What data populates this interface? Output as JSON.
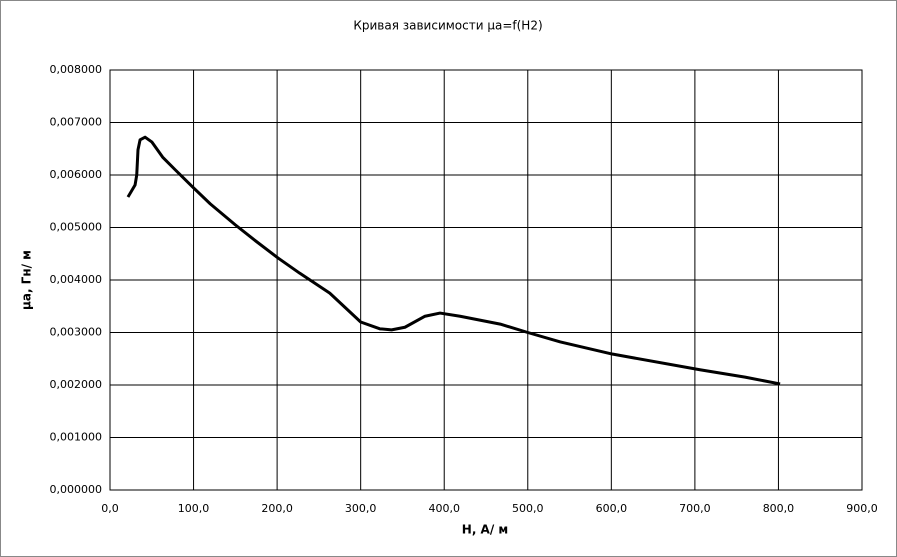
{
  "chart_data": {
    "type": "line",
    "title": "Кривая зависимости μа=f(H2)",
    "x_label": "Н, А/ м",
    "y_label": "μа, Гн/ м",
    "x": [
      21.5,
      30,
      32,
      33.5,
      36,
      42,
      50,
      63,
      78,
      99,
      120,
      150,
      173,
      201,
      227,
      263,
      300,
      323,
      337,
      353,
      377,
      395,
      419,
      467,
      500,
      539,
      601,
      706,
      760,
      802
    ],
    "series": [
      {
        "name": "μа",
        "color": "#000000",
        "values": [
          0.00558,
          0.00581,
          0.006,
          0.00648,
          0.00667,
          0.00672,
          0.00663,
          0.00634,
          0.0061,
          0.00577,
          0.00545,
          0.00505,
          0.00476,
          0.00442,
          0.00413,
          0.00375,
          0.0032,
          0.00307,
          0.00305,
          0.0031,
          0.00331,
          0.00337,
          0.00331,
          0.00316,
          0.003,
          0.00282,
          0.00259,
          0.00229,
          0.00215,
          0.00202
        ]
      }
    ],
    "xlim": [
      0,
      900
    ],
    "ylim": [
      0,
      0.008
    ],
    "xticks": [
      {
        "value": 0,
        "label": "0,0"
      },
      {
        "value": 100,
        "label": "100,0"
      },
      {
        "value": 200,
        "label": "200,0"
      },
      {
        "value": 300,
        "label": "300,0"
      },
      {
        "value": 400,
        "label": "400,0"
      },
      {
        "value": 500,
        "label": "500,0"
      },
      {
        "value": 600,
        "label": "600,0"
      },
      {
        "value": 700,
        "label": "700,0"
      },
      {
        "value": 800,
        "label": "800,0"
      },
      {
        "value": 900,
        "label": "900,0"
      }
    ],
    "yticks": [
      {
        "value": 0,
        "label": "0,000000"
      },
      {
        "value": 0.001,
        "label": "0,001000"
      },
      {
        "value": 0.002,
        "label": "0,002000"
      },
      {
        "value": 0.003,
        "label": "0,003000"
      },
      {
        "value": 0.004,
        "label": "0,004000"
      },
      {
        "value": 0.005,
        "label": "0,005000"
      },
      {
        "value": 0.006,
        "label": "0,006000"
      },
      {
        "value": 0.007,
        "label": "0,007000"
      },
      {
        "value": 0.008,
        "label": "0,008000"
      }
    ],
    "grid": true
  }
}
